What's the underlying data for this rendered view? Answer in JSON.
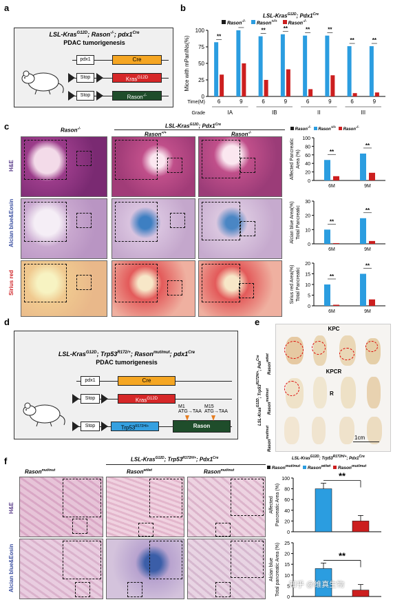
{
  "panels": {
    "a": "a",
    "b": "b",
    "c": "c",
    "d": "d",
    "e": "e",
    "f": "f"
  },
  "a": {
    "title1": "LSL-Kras",
    "sup1": "G12D",
    "title2": "; Rason",
    "sup2": "-/-",
    "title3": "; pdx1",
    "sup3": "Cre",
    "subtitle": "PDAC tumorigenesis",
    "pdx1": "pdx1",
    "cre": "Cre",
    "stop": "Stop",
    "kras": "Kras",
    "kras_sup": "G12D",
    "rason": "Rason",
    "rason_sup": "-/-"
  },
  "b": {
    "header_kras": "LSL-Kras",
    "header_kras_sup": "G12D",
    "header_pdx": "; Pdx1",
    "header_pdx_sup": "Cre",
    "legend": [
      {
        "name": "Rason",
        "sup": "-/-",
        "color": "#1a1a1a"
      },
      {
        "name": "Rason",
        "sup": "+/+",
        "color": "#2b9de0"
      },
      {
        "name": "Rason",
        "sup": "-/-",
        "color": "#cc1f1f"
      }
    ],
    "ylabel": "Mice with mPanINs(%)",
    "time_label": "Time(M)",
    "grade_label": "Grade",
    "sig": "**"
  },
  "chart_data": [
    {
      "type": "bar",
      "panel": "b",
      "categories": [
        "IA 6",
        "IA 9",
        "IB 6",
        "IB 9",
        "II 6",
        "II 9",
        "III 6",
        "III 9"
      ],
      "time": [
        "6",
        "9",
        "6",
        "9",
        "6",
        "9",
        "6",
        "9"
      ],
      "grades": [
        "IA",
        "IB",
        "II",
        "III"
      ],
      "series": [
        {
          "name": "Rason+/+",
          "values": [
            82,
            100,
            91,
            94,
            92,
            92,
            76,
            76
          ]
        },
        {
          "name": "Rason-/-",
          "values": [
            33,
            50,
            25,
            41,
            11,
            32,
            5,
            6
          ]
        }
      ],
      "ylim": [
        0,
        100
      ],
      "yticks": [
        "0",
        "25",
        "50",
        "75",
        "100"
      ],
      "ylabel": "Mice with mPanINs(%)"
    },
    {
      "type": "bar",
      "panel": "c1",
      "categories": [
        "6M",
        "9M"
      ],
      "series": [
        {
          "name": "Rason+/+",
          "values": [
            48,
            63
          ]
        },
        {
          "name": "Rason-/-",
          "values": [
            10,
            18
          ]
        }
      ],
      "ylim": [
        0,
        100
      ],
      "yticks": [
        "0",
        "20",
        "40",
        "60",
        "80",
        "100"
      ],
      "ylabel": "Affected Pancreatic Area (%)"
    },
    {
      "type": "bar",
      "panel": "c2",
      "categories": [
        "6M",
        "9M"
      ],
      "series": [
        {
          "name": "Rason+/+",
          "values": [
            10,
            18
          ]
        },
        {
          "name": "Rason-/-",
          "values": [
            0.5,
            2
          ]
        }
      ],
      "ylim": [
        0,
        30
      ],
      "yticks": [
        "0",
        "10",
        "20",
        "30"
      ],
      "ylabel": "Alcian blue Area(%) Total Pancreatic"
    },
    {
      "type": "bar",
      "panel": "c3",
      "categories": [
        "6M",
        "9M"
      ],
      "series": [
        {
          "name": "Rason+/+",
          "values": [
            10,
            15
          ]
        },
        {
          "name": "Rason-/-",
          "values": [
            0.5,
            3
          ]
        }
      ],
      "ylim": [
        0,
        20
      ],
      "yticks": [
        "0",
        "5",
        "10",
        "15",
        "20"
      ],
      "ylabel": "Sirius red Area(%) Total Pancreatic"
    },
    {
      "type": "bar",
      "panel": "f1",
      "categories": [
        "Rason wt/wt",
        "Rason mut/mut"
      ],
      "series": [
        {
          "name": "",
          "values": [
            80,
            20
          ]
        }
      ],
      "ylim": [
        0,
        100
      ],
      "yticks": [
        "0",
        "20",
        "40",
        "60",
        "80",
        "100"
      ],
      "ylabel": "Affected Pancreatic Area (%)"
    },
    {
      "type": "bar",
      "panel": "f2",
      "categories": [
        "Rason wt/wt",
        "Rason mut/mut"
      ],
      "series": [
        {
          "name": "",
          "values": [
            13,
            3
          ]
        }
      ],
      "ylim": [
        0,
        25
      ],
      "yticks": [
        "0",
        "5",
        "10",
        "15",
        "20",
        "25"
      ],
      "ylabel": "Alcian blue Area (%) Total pancreatic"
    }
  ],
  "c": {
    "header_ko": "Rason",
    "header_ko_sup": "-/-",
    "header_kras": "LSL-Kras",
    "header_kras_sup": "G12D",
    "header_pdx": "; Pdx1",
    "header_pdx_sup": "Cre",
    "col_wt": "Rason",
    "col_wt_sup": "+/+",
    "col_ko": "Rason",
    "col_ko_sup": "-/-",
    "row_he": "H&E",
    "row_ab": "Alcian blue&Eosin",
    "row_sr": "Sirius red",
    "legend": [
      {
        "name": "Rason",
        "sup": "-/-",
        "color": "#1a1a1a"
      },
      {
        "name": "Rason",
        "sup": "+/+",
        "color": "#2b9de0"
      },
      {
        "name": "Rason",
        "sup": "-/-",
        "color": "#cc1f1f"
      }
    ],
    "ylab1a": "Affected Pancreatic",
    "ylab1b": "Area (%)",
    "ylab2a": "Alcian blue Area(%)",
    "ylab2b": "Total Pancreatic",
    "ylab3a": "Sirius red Area(%)",
    "ylab3b": "Total Pancreatic",
    "m6": "6M",
    "m9": "9M",
    "sig": "**"
  },
  "d": {
    "title1": "LSL-Kras",
    "sup1": "G12D",
    "title2": "; Trp53",
    "sup2": "R172/+",
    "title3": "; Rason",
    "sup3": "mut/mut",
    "title4": "; pdx1",
    "sup4": "Cre",
    "subtitle": "PDAC tumorigenesis",
    "pdx1": "pdx1",
    "cre": "Cre",
    "stop": "Stop",
    "kras": "Kras",
    "kras_sup": "G12D",
    "trp": "Trp53",
    "trp_sup": "R172H/+",
    "rason": "Rason",
    "m1": "M1",
    "m1seq": "ATG→TAA",
    "m15": "M15",
    "m15seq": "ATG→TAA"
  },
  "e": {
    "kpc": "KPC",
    "kpcr": "KPCR",
    "r": "R",
    "scale": "1cm",
    "side": "LSL-Kras",
    "side_sup": "G12D",
    "side2": "; Trp53",
    "side2_sup": "R172H/+",
    "side3": "; Pdx",
    "side3_sup": "Cre",
    "row1": "Rason",
    "row1_sup": "wt/wt",
    "row2": "Rason",
    "row2_sup": "mut/mut",
    "row3": "Rason",
    "row3_sup": "mut/mut"
  },
  "f": {
    "header": "LSL-Kras",
    "header_sup": "G12D",
    "header2": "; Trp53",
    "header2_sup": "R172H/+",
    "header3": "; Pdx1",
    "header3_sup": "Cre",
    "col1": "Rason",
    "col1_sup": "mut/mut",
    "col2": "Rason",
    "col2_sup": "wt/wt",
    "col3": "Rason",
    "col3_sup": "mut/mut",
    "row_he": "H&E",
    "row_ab": "Alcian blue&Eosin",
    "legend_header": "LSL-Kras",
    "legend_header_sup": "G12D",
    "legend_header2": "; Trp53",
    "legend_header2_sup": "R172H/+",
    "legend_header3": "; Pdx1",
    "legend_header3_sup": "Cre",
    "legend": [
      {
        "name": "Rason",
        "sup": "mut/mut",
        "color": "#1a1a1a"
      },
      {
        "name": "Rason",
        "sup": "wt/wt",
        "color": "#2b9de0"
      },
      {
        "name": "Rason",
        "sup": "mut/mut",
        "color": "#cc1f1f"
      }
    ],
    "ylab1a": "Affected",
    "ylab1b": "Pancreatic Area (%)",
    "ylab2a": "Alcian blue",
    "ylab2b": "Total pancreatic Area (%)",
    "sig": "**"
  },
  "watermark": "知乎 @维真生物"
}
